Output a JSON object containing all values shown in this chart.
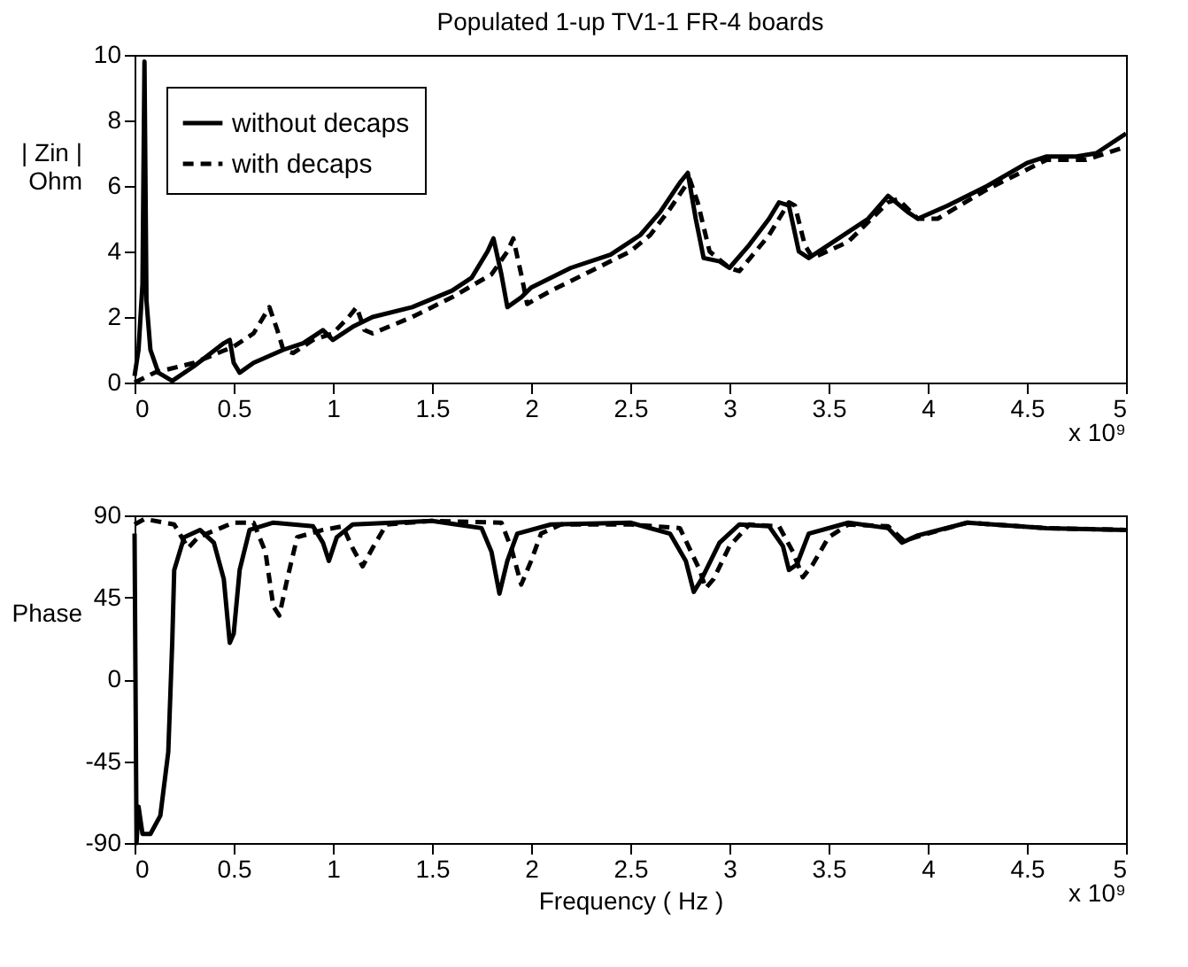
{
  "chart_data": [
    {
      "type": "line",
      "title": "Populated 1-up TV1-1 FR-4 boards",
      "ylabel": "| Zin |\nOhm",
      "xlim": [
        0,
        5
      ],
      "xticks": [
        0,
        0.5,
        1,
        1.5,
        2,
        2.5,
        3,
        3.5,
        4,
        4.5,
        5
      ],
      "ylim": [
        0,
        10
      ],
      "yticks": [
        0,
        2,
        4,
        6,
        8,
        10
      ],
      "grid": false,
      "legend": "top left",
      "annotations": [
        "x 10⁹"
      ],
      "series": [
        {
          "name": "without decaps",
          "color": "#000000",
          "line_style": "solid",
          "x": [
            0,
            0.02,
            0.04,
            0.05,
            0.06,
            0.08,
            0.12,
            0.19,
            0.3,
            0.45,
            0.48,
            0.5,
            0.53,
            0.6,
            0.75,
            0.85,
            0.95,
            1.0,
            1.1,
            1.2,
            1.4,
            1.6,
            1.7,
            1.78,
            1.81,
            1.85,
            1.88,
            1.95,
            2.0,
            2.2,
            2.4,
            2.55,
            2.65,
            2.75,
            2.79,
            2.83,
            2.87,
            2.95,
            3.0,
            3.1,
            3.2,
            3.25,
            3.3,
            3.35,
            3.4,
            3.5,
            3.7,
            3.8,
            3.9,
            3.95,
            4.1,
            4.3,
            4.5,
            4.6,
            4.75,
            4.85,
            5.0
          ],
          "values": [
            0.2,
            1,
            3,
            9.8,
            2.5,
            1,
            0.3,
            0.05,
            0.5,
            1.2,
            1.3,
            0.6,
            0.3,
            0.6,
            1.0,
            1.2,
            1.6,
            1.3,
            1.7,
            2.0,
            2.3,
            2.8,
            3.2,
            4.0,
            4.4,
            3.3,
            2.3,
            2.6,
            2.9,
            3.5,
            3.9,
            4.5,
            5.2,
            6.1,
            6.4,
            5.0,
            3.8,
            3.7,
            3.5,
            4.2,
            5.0,
            5.5,
            5.4,
            4.0,
            3.8,
            4.2,
            5.0,
            5.7,
            5.2,
            5.0,
            5.4,
            6.0,
            6.7,
            6.9,
            6.9,
            7.0,
            7.6
          ]
        },
        {
          "name": "with decaps",
          "color": "#000000",
          "line_style": "dashed",
          "x": [
            0,
            0.1,
            0.3,
            0.5,
            0.6,
            0.68,
            0.72,
            0.75,
            0.8,
            0.9,
            1.0,
            1.08,
            1.12,
            1.16,
            1.2,
            1.4,
            1.6,
            1.8,
            1.88,
            1.91,
            1.95,
            1.98,
            2.1,
            2.3,
            2.5,
            2.6,
            2.7,
            2.8,
            2.84,
            2.9,
            3.0,
            3.05,
            3.2,
            3.3,
            3.33,
            3.38,
            3.42,
            3.6,
            3.8,
            3.85,
            3.95,
            4.05,
            4.3,
            4.5,
            4.6,
            4.8,
            4.9,
            5.0
          ],
          "values": [
            0.0,
            0.3,
            0.6,
            1.1,
            1.5,
            2.3,
            1.6,
            1.0,
            0.9,
            1.3,
            1.5,
            2.0,
            2.3,
            1.6,
            1.5,
            2.0,
            2.6,
            3.3,
            4.0,
            4.4,
            3.3,
            2.4,
            2.8,
            3.4,
            4.0,
            4.5,
            5.3,
            6.2,
            5.5,
            4.0,
            3.5,
            3.4,
            4.5,
            5.5,
            5.4,
            4.2,
            3.8,
            4.3,
            5.5,
            5.6,
            5.0,
            5.0,
            5.9,
            6.5,
            6.8,
            6.8,
            7.0,
            7.2
          ]
        }
      ]
    },
    {
      "type": "line",
      "xlabel": "Frequency ( Hz )",
      "ylabel": "Phase",
      "xlim": [
        0,
        5
      ],
      "xticks": [
        0,
        0.5,
        1,
        1.5,
        2,
        2.5,
        3,
        3.5,
        4,
        4.5,
        5
      ],
      "ylim": [
        -90,
        90
      ],
      "yticks": [
        -90,
        -45,
        0,
        45,
        90
      ],
      "grid": false,
      "legend": false,
      "annotations": [
        "x 10⁹"
      ],
      "series": [
        {
          "color": "#000000",
          "line_style": "solid",
          "x": [
            0,
            0.01,
            0.02,
            0.04,
            0.08,
            0.13,
            0.17,
            0.19,
            0.2,
            0.25,
            0.33,
            0.4,
            0.45,
            0.48,
            0.5,
            0.53,
            0.58,
            0.7,
            0.9,
            0.95,
            0.98,
            1.02,
            1.1,
            1.5,
            1.75,
            1.8,
            1.84,
            1.88,
            1.93,
            2.1,
            2.5,
            2.7,
            2.78,
            2.82,
            2.86,
            2.95,
            3.05,
            3.2,
            3.27,
            3.3,
            3.34,
            3.4,
            3.6,
            3.8,
            3.87,
            3.95,
            4.2,
            4.6,
            5.0
          ],
          "values": [
            80,
            -90,
            -70,
            -85,
            -85,
            -75,
            -40,
            20,
            60,
            78,
            82,
            75,
            55,
            20,
            25,
            60,
            82,
            86,
            84,
            75,
            65,
            78,
            85,
            87,
            83,
            70,
            47,
            65,
            80,
            85,
            86,
            80,
            65,
            48,
            55,
            75,
            85,
            84,
            73,
            60,
            63,
            80,
            86,
            83,
            75,
            79,
            86,
            83,
            82
          ]
        },
        {
          "color": "#000000",
          "line_style": "dashed",
          "x": [
            0,
            0.05,
            0.2,
            0.27,
            0.32,
            0.5,
            0.6,
            0.66,
            0.7,
            0.73,
            0.77,
            0.82,
            0.95,
            1.05,
            1.1,
            1.15,
            1.2,
            1.27,
            1.5,
            1.85,
            1.9,
            1.95,
            2.0,
            2.05,
            2.15,
            2.5,
            2.75,
            2.85,
            2.88,
            2.92,
            3.0,
            3.1,
            3.25,
            3.32,
            3.37,
            3.42,
            3.5,
            3.6,
            3.8,
            3.88,
            4.0,
            4.2,
            4.6,
            5.0
          ],
          "values": [
            85,
            88,
            85,
            72,
            78,
            86,
            86,
            70,
            40,
            35,
            55,
            78,
            82,
            84,
            72,
            62,
            72,
            85,
            87,
            86,
            72,
            52,
            65,
            80,
            85,
            85,
            83,
            60,
            50,
            55,
            73,
            85,
            84,
            70,
            56,
            63,
            78,
            85,
            84,
            76,
            80,
            86,
            83,
            82
          ]
        }
      ]
    }
  ]
}
